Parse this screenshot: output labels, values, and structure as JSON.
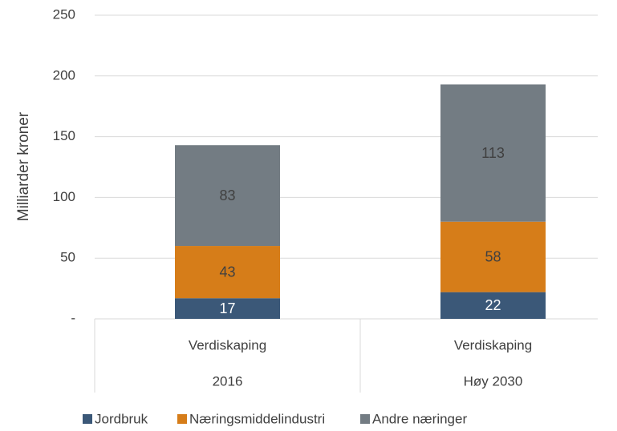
{
  "chart_data": {
    "type": "stacked_bar",
    "ylabel": "Milliarder kroner",
    "categories": [
      "Verdiskaping",
      "Verdiskaping"
    ],
    "groups": [
      "2016",
      "Høy 2030"
    ],
    "series": [
      {
        "name": "Jordbruk",
        "color": "#3b5878",
        "values": [
          17,
          22
        ]
      },
      {
        "name": "Næringsmiddelindustri",
        "color": "#d67d19",
        "values": [
          43,
          58
        ]
      },
      {
        "name": "Andre næringer",
        "color": "#737c83",
        "values": [
          83,
          113
        ]
      }
    ],
    "ylim": [
      0,
      250
    ],
    "yticks": [
      {
        "value": 0,
        "label": "-"
      },
      50,
      100,
      150,
      200,
      250
    ],
    "grid": true,
    "legend": "bottom"
  }
}
